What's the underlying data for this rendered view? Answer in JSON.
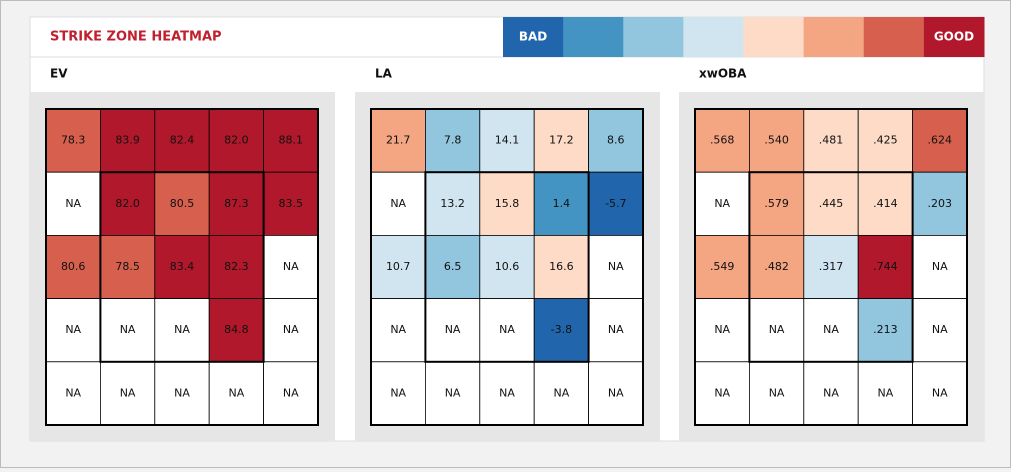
{
  "header": {
    "title": "STRIKE ZONE HEATMAP",
    "legend": [
      {
        "text": "BAD",
        "color": "#2166ac"
      },
      {
        "color": "#4393c3"
      },
      {
        "color": "#92c5de"
      },
      {
        "color": "#d1e5f0"
      },
      {
        "color": "#fddbc7"
      },
      {
        "color": "#f4a582"
      },
      {
        "color": "#d6604d"
      },
      {
        "text": "GOOD",
        "color": "#b2182b"
      }
    ]
  },
  "panels": [
    {
      "label": "EV",
      "cells": [
        [
          {
            "text": "78.3",
            "color": "#d6604d"
          },
          {
            "text": "83.9",
            "color": "#b2182b"
          },
          {
            "text": "82.4",
            "color": "#b2182b"
          },
          {
            "text": "82.0",
            "color": "#b2182b"
          },
          {
            "text": "88.1",
            "color": "#b2182b"
          }
        ],
        [
          {
            "text": "NA",
            "color": "#ffffff"
          },
          {
            "text": "82.0",
            "color": "#b2182b"
          },
          {
            "text": "80.5",
            "color": "#d6604d"
          },
          {
            "text": "87.3",
            "color": "#b2182b"
          },
          {
            "text": "83.5",
            "color": "#b2182b"
          }
        ],
        [
          {
            "text": "80.6",
            "color": "#d6604d"
          },
          {
            "text": "78.5",
            "color": "#d6604d"
          },
          {
            "text": "83.4",
            "color": "#b2182b"
          },
          {
            "text": "82.3",
            "color": "#b2182b"
          },
          {
            "text": "NA",
            "color": "#ffffff"
          }
        ],
        [
          {
            "text": "NA",
            "color": "#ffffff"
          },
          {
            "text": "NA",
            "color": "#ffffff"
          },
          {
            "text": "NA",
            "color": "#ffffff"
          },
          {
            "text": "84.8",
            "color": "#b2182b"
          },
          {
            "text": "NA",
            "color": "#ffffff"
          }
        ],
        [
          {
            "text": "NA",
            "color": "#ffffff"
          },
          {
            "text": "NA",
            "color": "#ffffff"
          },
          {
            "text": "NA",
            "color": "#ffffff"
          },
          {
            "text": "NA",
            "color": "#ffffff"
          },
          {
            "text": "NA",
            "color": "#ffffff"
          }
        ]
      ]
    },
    {
      "label": "LA",
      "cells": [
        [
          {
            "text": "21.7",
            "color": "#f4a582"
          },
          {
            "text": "7.8",
            "color": "#92c5de"
          },
          {
            "text": "14.1",
            "color": "#d1e5f0"
          },
          {
            "text": "17.2",
            "color": "#fddbc7"
          },
          {
            "text": "8.6",
            "color": "#92c5de"
          }
        ],
        [
          {
            "text": "NA",
            "color": "#ffffff"
          },
          {
            "text": "13.2",
            "color": "#d1e5f0"
          },
          {
            "text": "15.8",
            "color": "#fddbc7"
          },
          {
            "text": "1.4",
            "color": "#4393c3"
          },
          {
            "text": "-5.7",
            "color": "#2166ac"
          }
        ],
        [
          {
            "text": "10.7",
            "color": "#d1e5f0"
          },
          {
            "text": "6.5",
            "color": "#92c5de"
          },
          {
            "text": "10.6",
            "color": "#d1e5f0"
          },
          {
            "text": "16.6",
            "color": "#fddbc7"
          },
          {
            "text": "NA",
            "color": "#ffffff"
          }
        ],
        [
          {
            "text": "NA",
            "color": "#ffffff"
          },
          {
            "text": "NA",
            "color": "#ffffff"
          },
          {
            "text": "NA",
            "color": "#ffffff"
          },
          {
            "text": "-3.8",
            "color": "#2166ac"
          },
          {
            "text": "NA",
            "color": "#ffffff"
          }
        ],
        [
          {
            "text": "NA",
            "color": "#ffffff"
          },
          {
            "text": "NA",
            "color": "#ffffff"
          },
          {
            "text": "NA",
            "color": "#ffffff"
          },
          {
            "text": "NA",
            "color": "#ffffff"
          },
          {
            "text": "NA",
            "color": "#ffffff"
          }
        ]
      ]
    },
    {
      "label": "xwOBA",
      "cells": [
        [
          {
            "text": ".568",
            "color": "#f4a582"
          },
          {
            "text": ".540",
            "color": "#f4a582"
          },
          {
            "text": ".481",
            "color": "#fddbc7"
          },
          {
            "text": ".425",
            "color": "#fddbc7"
          },
          {
            "text": ".624",
            "color": "#d6604d"
          }
        ],
        [
          {
            "text": "NA",
            "color": "#ffffff"
          },
          {
            "text": ".579",
            "color": "#f4a582"
          },
          {
            "text": ".445",
            "color": "#fddbc7"
          },
          {
            "text": ".414",
            "color": "#fddbc7"
          },
          {
            "text": ".203",
            "color": "#92c5de"
          }
        ],
        [
          {
            "text": ".549",
            "color": "#f4a582"
          },
          {
            "text": ".482",
            "color": "#f4a582"
          },
          {
            "text": ".317",
            "color": "#d1e5f0"
          },
          {
            "text": ".744",
            "color": "#b2182b"
          },
          {
            "text": "NA",
            "color": "#ffffff"
          }
        ],
        [
          {
            "text": "NA",
            "color": "#ffffff"
          },
          {
            "text": "NA",
            "color": "#ffffff"
          },
          {
            "text": "NA",
            "color": "#ffffff"
          },
          {
            "text": ".213",
            "color": "#92c5de"
          },
          {
            "text": "NA",
            "color": "#ffffff"
          }
        ],
        [
          {
            "text": "NA",
            "color": "#ffffff"
          },
          {
            "text": "NA",
            "color": "#ffffff"
          },
          {
            "text": "NA",
            "color": "#ffffff"
          },
          {
            "text": "NA",
            "color": "#ffffff"
          },
          {
            "text": "NA",
            "color": "#ffffff"
          }
        ]
      ]
    }
  ]
}
